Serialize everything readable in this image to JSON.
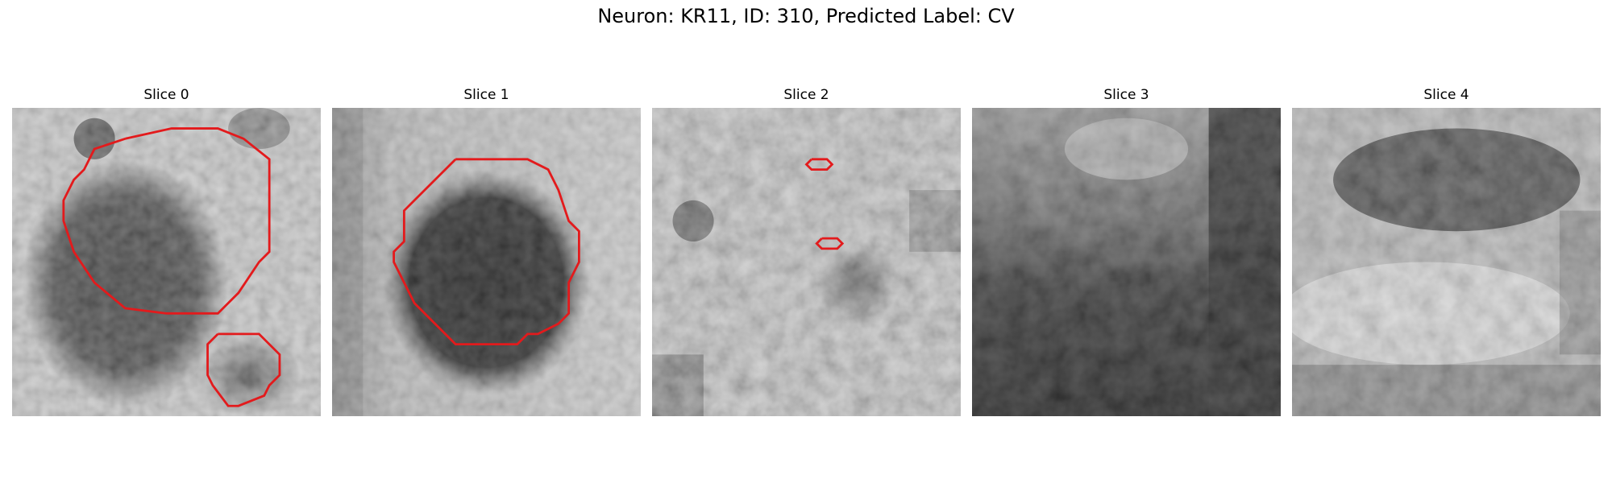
{
  "figure": {
    "title": "Neuron: KR11, ID: 310, Predicted Label: CV"
  },
  "panels": [
    {
      "title": "Slice 0"
    },
    {
      "title": "Slice 1"
    },
    {
      "title": "Slice 2"
    },
    {
      "title": "Slice 3"
    },
    {
      "title": "Slice 4"
    }
  ],
  "colors": {
    "contour": "#e31a1c",
    "background": "#ffffff"
  }
}
